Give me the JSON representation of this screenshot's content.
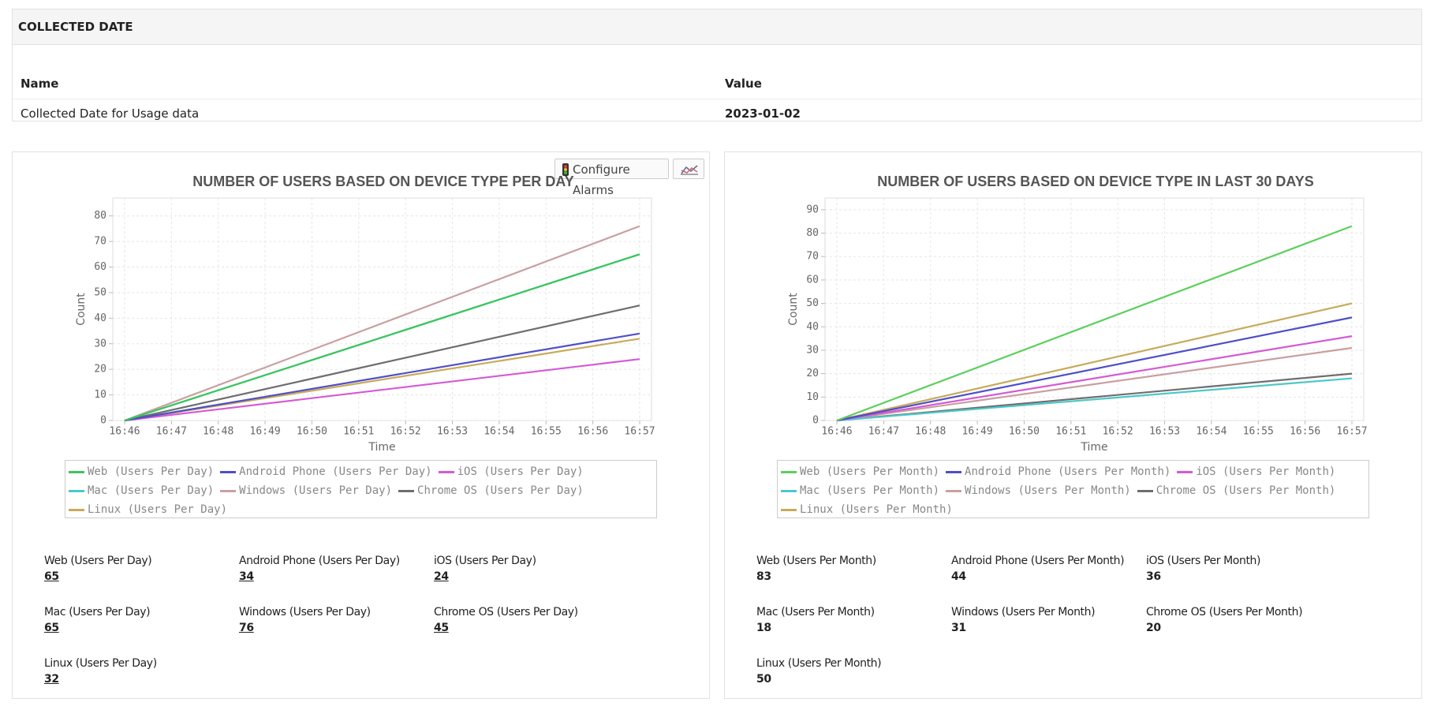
{
  "section": {
    "title": "COLLECTED DATE",
    "columns": [
      "Name",
      "Value"
    ],
    "rows": [
      [
        "Collected Date for Usage data",
        "2023-01-02"
      ]
    ]
  },
  "buttons": {
    "configure_alarms": "Configure Alarms"
  },
  "chart_data": [
    {
      "type": "line",
      "title": "NUMBER OF USERS BASED ON DEVICE TYPE PER DAY",
      "xlabel": "Time",
      "ylabel": "Count",
      "x": [
        "16:46",
        "16:57"
      ],
      "xticks": [
        "16:46",
        "16:47",
        "16:48",
        "16:49",
        "16:50",
        "16:51",
        "16:52",
        "16:53",
        "16:54",
        "16:55",
        "16:56",
        "16:57"
      ],
      "ylim": [
        0,
        87
      ],
      "yticks": [
        0,
        10,
        20,
        30,
        40,
        50,
        60,
        70,
        80
      ],
      "grid": true,
      "series": [
        {
          "name": "Web (Users Per Day)",
          "color": "#3cc55a",
          "values": [
            0,
            65
          ]
        },
        {
          "name": "Android Phone (Users Per Day)",
          "color": "#4f4fc8",
          "values": [
            0,
            34
          ]
        },
        {
          "name": "iOS (Users Per Day)",
          "color": "#d45ad4",
          "values": [
            0,
            24
          ]
        },
        {
          "name": "Mac (Users Per Day)",
          "color": "#4dc8c8",
          "values": [
            0,
            65
          ]
        },
        {
          "name": "Windows (Users Per Day)",
          "color": "#c9a0a0",
          "values": [
            0,
            76
          ]
        },
        {
          "name": "Chrome OS (Users Per Day)",
          "color": "#6e6e6e",
          "values": [
            0,
            45
          ]
        },
        {
          "name": "Linux (Users Per Day)",
          "color": "#c8aa5a",
          "values": [
            0,
            32
          ]
        }
      ]
    },
    {
      "type": "line",
      "title": "NUMBER OF USERS BASED ON DEVICE TYPE IN LAST 30 DAYS",
      "xlabel": "Time",
      "ylabel": "Count",
      "x": [
        "16:46",
        "16:57"
      ],
      "xticks": [
        "16:46",
        "16:47",
        "16:48",
        "16:49",
        "16:50",
        "16:51",
        "16:52",
        "16:53",
        "16:54",
        "16:55",
        "16:56",
        "16:57"
      ],
      "ylim": [
        0,
        95
      ],
      "yticks": [
        0,
        10,
        20,
        30,
        40,
        50,
        60,
        70,
        80,
        90
      ],
      "grid": true,
      "series": [
        {
          "name": "Web (Users Per Month)",
          "color": "#5cd05c",
          "values": [
            0,
            83
          ]
        },
        {
          "name": "Android Phone (Users Per Month)",
          "color": "#4f4fc8",
          "values": [
            0,
            44
          ]
        },
        {
          "name": "iOS (Users Per Month)",
          "color": "#d45ad4",
          "values": [
            0,
            36
          ]
        },
        {
          "name": "Mac (Users Per Month)",
          "color": "#4dc8c8",
          "values": [
            0,
            18
          ]
        },
        {
          "name": "Windows (Users Per Month)",
          "color": "#c9a0a0",
          "values": [
            0,
            31
          ]
        },
        {
          "name": "Chrome OS (Users Per Month)",
          "color": "#6e6e6e",
          "values": [
            0,
            20
          ]
        },
        {
          "name": "Linux (Users Per Month)",
          "color": "#c8aa5a",
          "values": [
            0,
            50
          ]
        }
      ]
    }
  ]
}
